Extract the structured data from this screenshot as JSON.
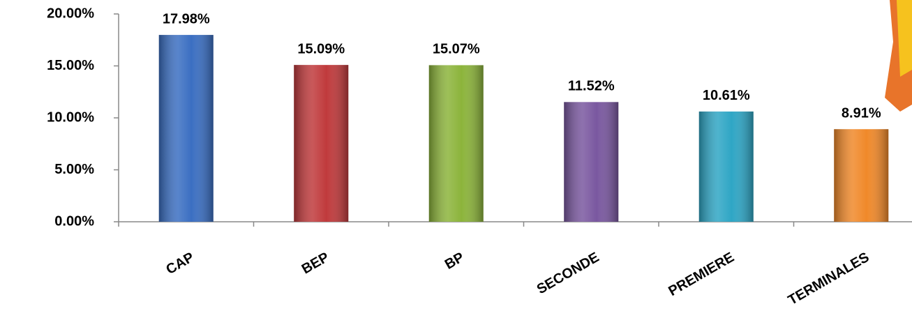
{
  "chart_data": {
    "type": "bar",
    "categories": [
      "CAP",
      "BEP",
      "BP",
      "SECONDE",
      "PREMIERE",
      "TERMINALES"
    ],
    "values": [
      17.98,
      15.09,
      15.07,
      11.52,
      10.61,
      8.91
    ],
    "value_labels": [
      "17.98%",
      "15.09%",
      "15.07%",
      "11.52%",
      "10.61%",
      "8.91%"
    ],
    "colors": [
      "#3b6fc2",
      "#c03a3c",
      "#8cb43b",
      "#7a58a0",
      "#2fa6c5",
      "#f0892a"
    ],
    "ylim": [
      0,
      20
    ],
    "yticks": [
      {
        "value": 0,
        "label": "0.00%"
      },
      {
        "value": 5,
        "label": "5.00%"
      },
      {
        "value": 10,
        "label": "10.00%"
      },
      {
        "value": 15,
        "label": "15.00%"
      },
      {
        "value": 20,
        "label": "20.00%"
      }
    ]
  }
}
